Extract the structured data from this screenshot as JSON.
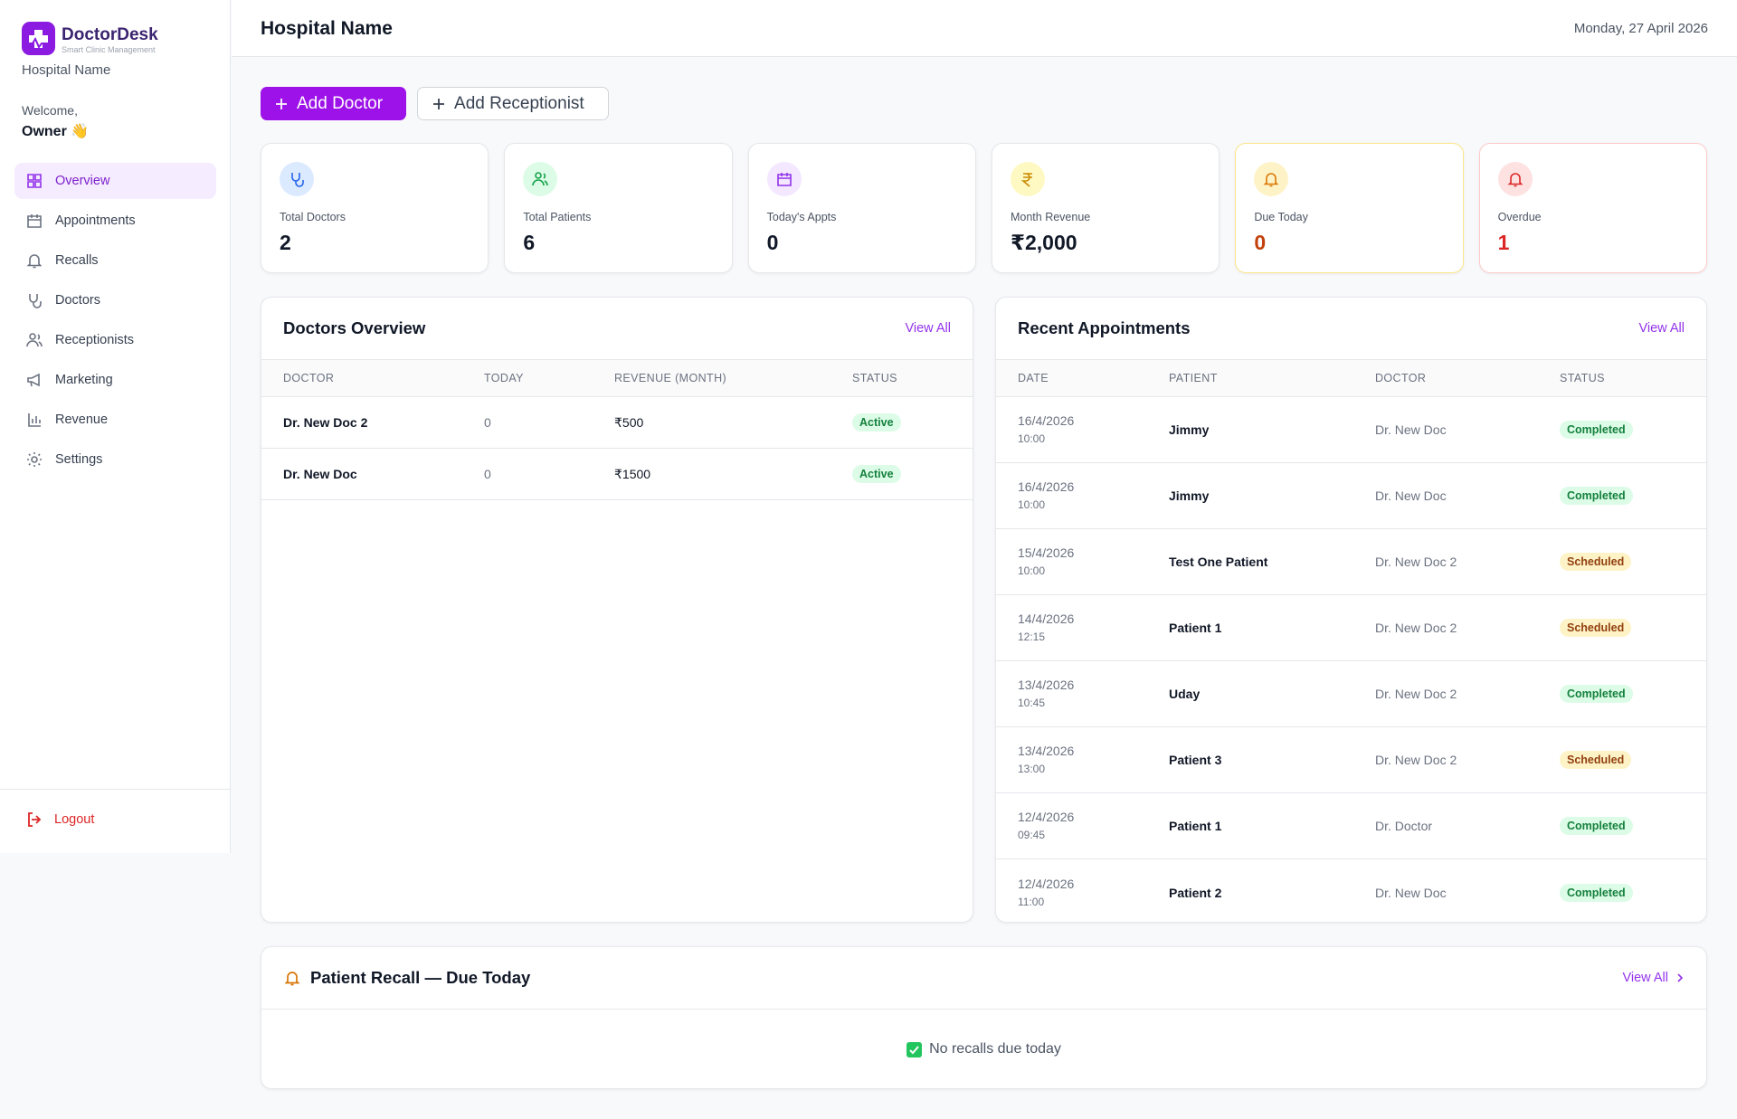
{
  "sidebar": {
    "brand": "DoctorDesk",
    "tagline": "Smart Clinic Management",
    "hospital": "Hospital Name",
    "welcome": "Welcome,",
    "user": "Owner 👋",
    "nav": [
      "Overview",
      "Appointments",
      "Recalls",
      "Doctors",
      "Receptionists",
      "Marketing",
      "Revenue",
      "Settings"
    ],
    "logout": "Logout"
  },
  "header": {
    "title": "Hospital Name",
    "date": "Monday, 27 April 2026"
  },
  "actions": [
    "Add Doctor",
    "Add Receptionist"
  ],
  "stats": [
    {
      "label": "Total Doctors",
      "value": 2
    },
    {
      "label": "Total Patients",
      "value": 6
    },
    {
      "label": "Today's Appts",
      "value": 0
    },
    {
      "label": "Month Revenue",
      "value": "₹2,000"
    },
    {
      "label": "Due Today",
      "value": 0
    },
    {
      "label": "Overdue",
      "value": 1
    }
  ],
  "doctors_overview": {
    "title": "Doctors Overview",
    "view_all": "View All",
    "columns": [
      "DOCTOR",
      "TODAY",
      "REVENUE (MONTH)",
      "STATUS"
    ],
    "rows": [
      [
        "Dr. New Doc 2",
        "0",
        "₹500",
        "Active"
      ],
      [
        "Dr. New Doc",
        "0",
        "₹1500",
        "Active"
      ]
    ]
  },
  "recent_appointments": {
    "title": "Recent Appointments",
    "view_all": "View All",
    "columns": [
      "DATE",
      "PATIENT",
      "DOCTOR",
      "STATUS"
    ],
    "rows": [
      {
        "date": "16/4/2026",
        "time": "10:00",
        "patient": "Jimmy",
        "doctor": "Dr. New Doc",
        "status": "Completed"
      },
      {
        "date": "16/4/2026",
        "time": "10:00",
        "patient": "Jimmy",
        "doctor": "Dr. New Doc",
        "status": "Completed"
      },
      {
        "date": "15/4/2026",
        "time": "10:00",
        "patient": "Test One Patient",
        "doctor": "Dr. New Doc 2",
        "status": "Scheduled"
      },
      {
        "date": "14/4/2026",
        "time": "12:15",
        "patient": "Patient 1",
        "doctor": "Dr. New Doc 2",
        "status": "Scheduled"
      },
      {
        "date": "13/4/2026",
        "time": "10:45",
        "patient": "Uday",
        "doctor": "Dr. New Doc 2",
        "status": "Completed"
      },
      {
        "date": "13/4/2026",
        "time": "13:00",
        "patient": "Patient 3",
        "doctor": "Dr. New Doc 2",
        "status": "Scheduled"
      },
      {
        "date": "12/4/2026",
        "time": "09:45",
        "patient": "Patient 1",
        "doctor": "Dr. Doctor",
        "status": "Completed"
      },
      {
        "date": "12/4/2026",
        "time": "11:00",
        "patient": "Patient 2",
        "doctor": "Dr. New Doc",
        "status": "Completed"
      }
    ]
  },
  "recall": {
    "title": "Patient Recall — Due Today",
    "view_all": "View All",
    "empty": "No recalls due today"
  }
}
